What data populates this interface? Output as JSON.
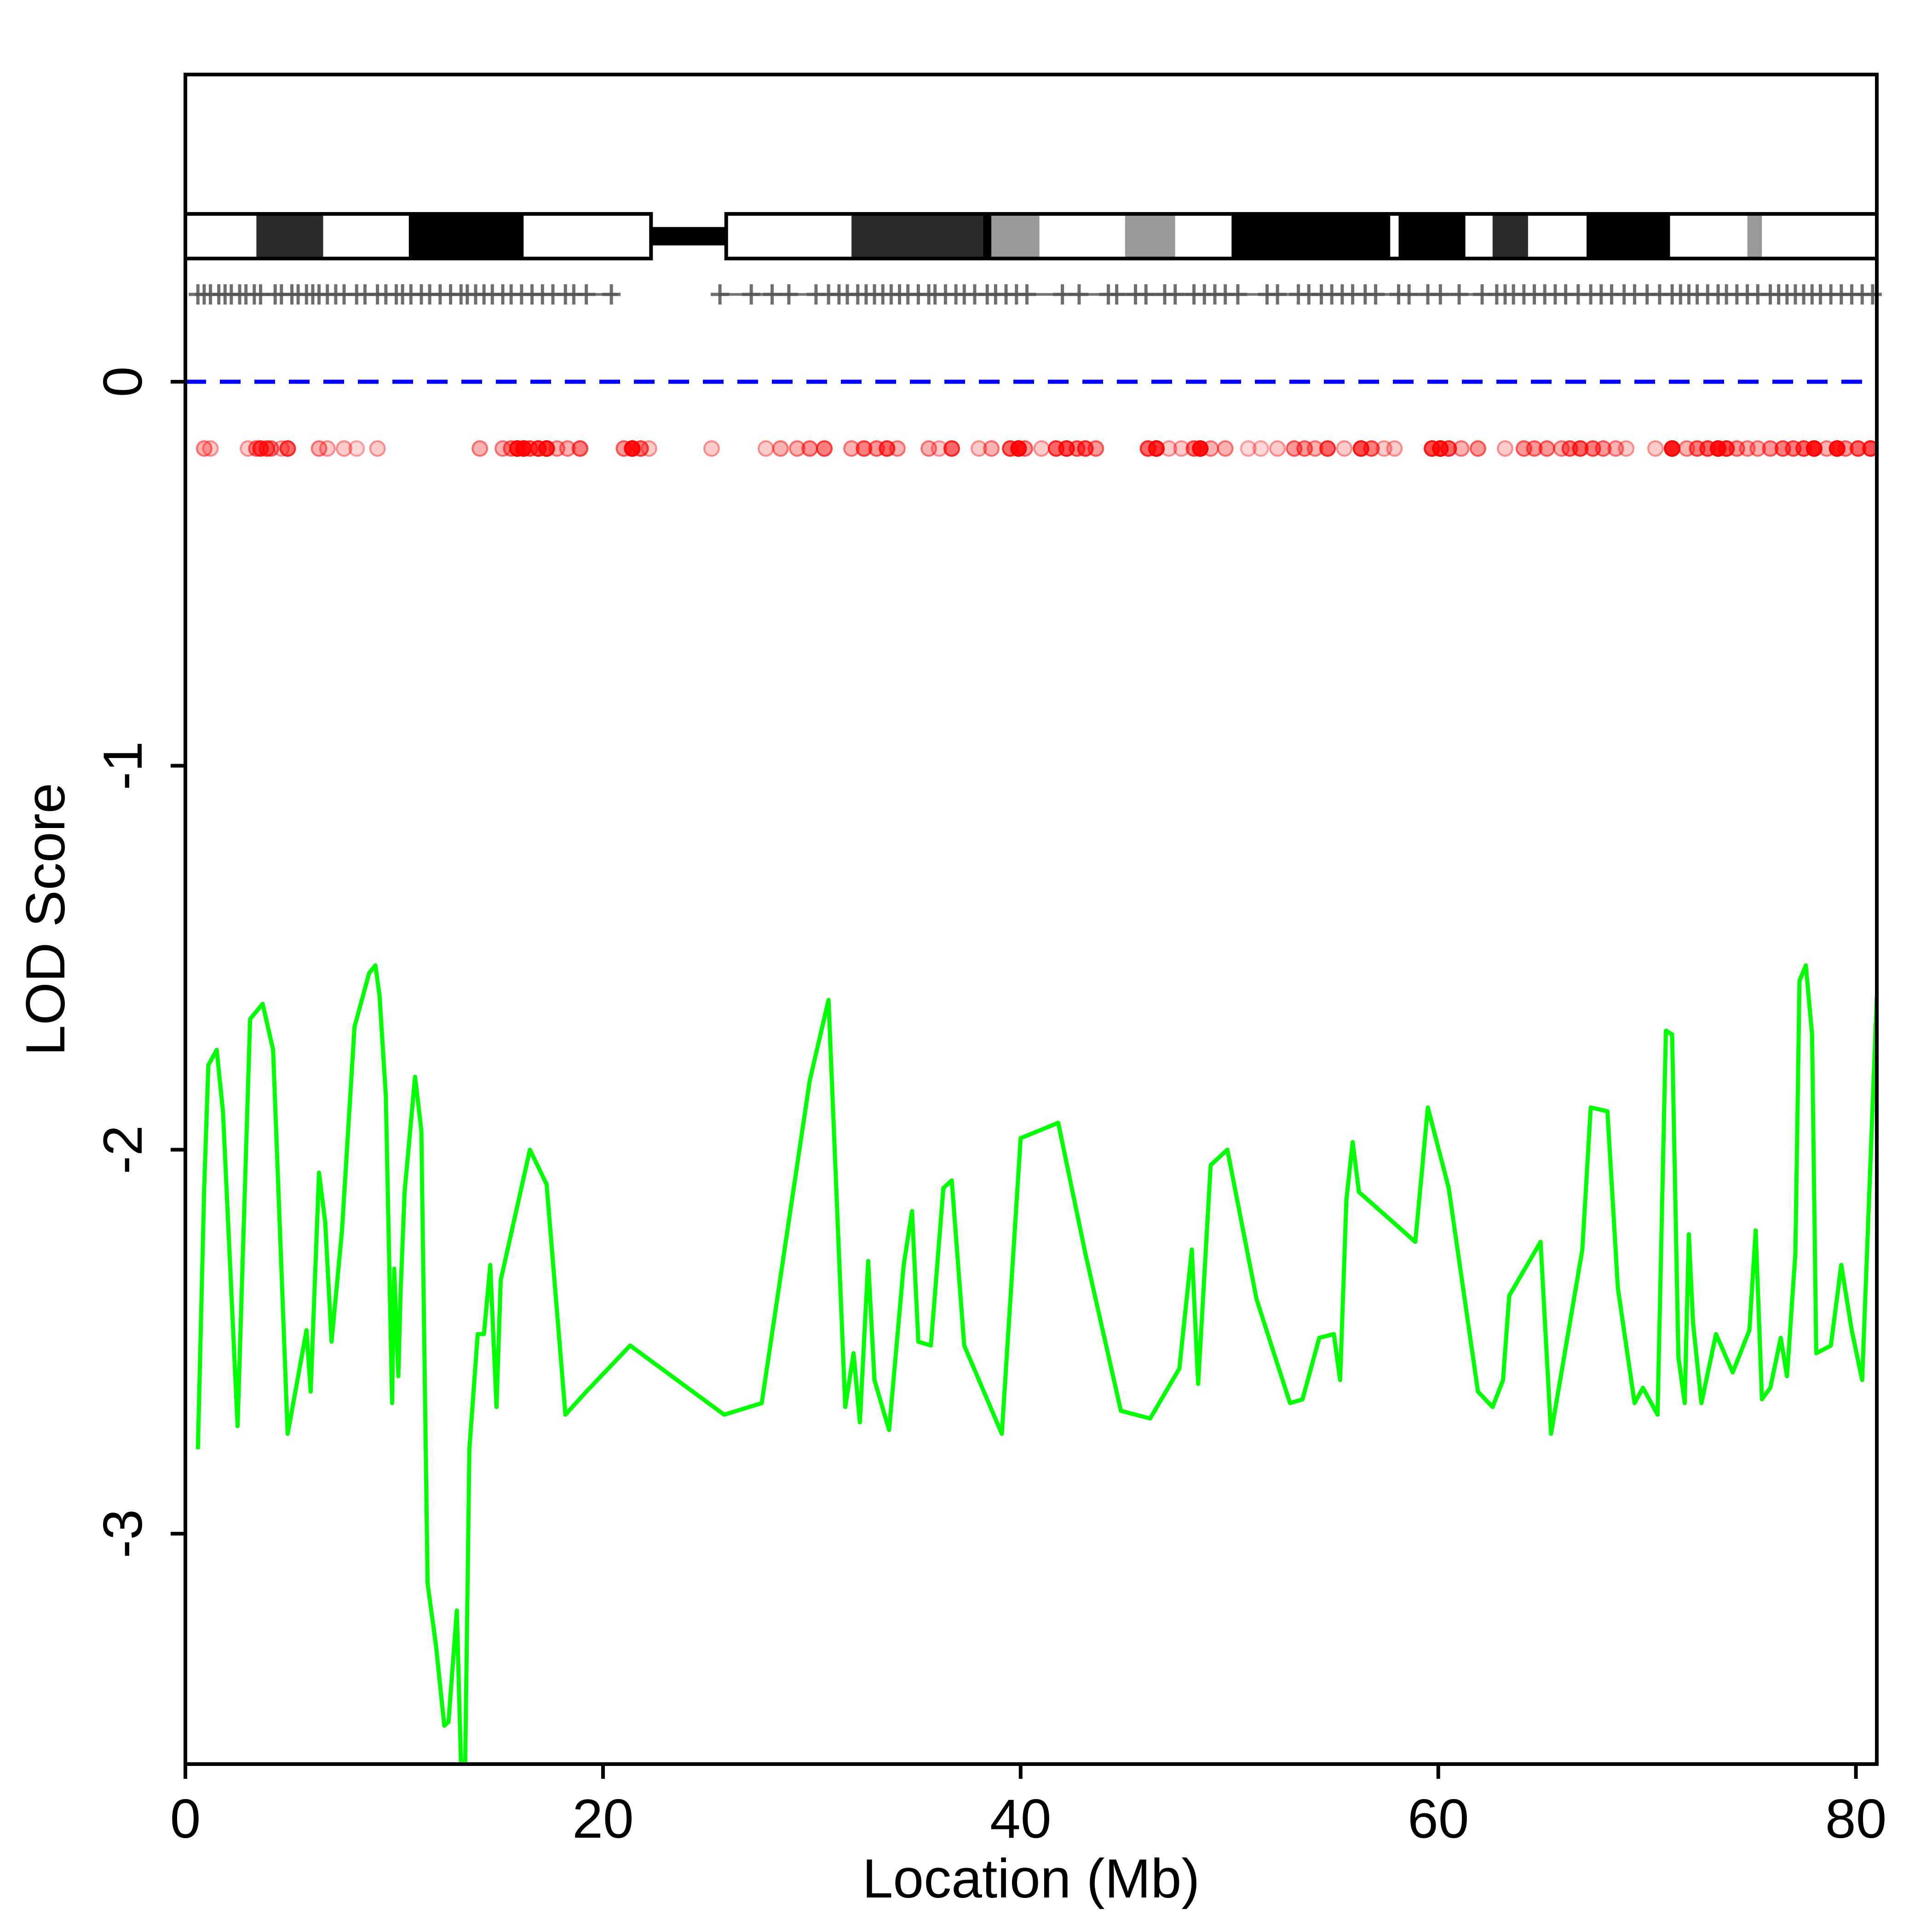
{
  "chart_data": {
    "type": "line",
    "title": "",
    "xlabel": "Location (Mb)",
    "ylabel": "LOD Score",
    "xlim": [
      0,
      81
    ],
    "ylim": [
      -3.6,
      0.8
    ],
    "xticks": [
      0,
      20,
      40,
      60,
      80
    ],
    "yticks": [
      -3,
      -2,
      -1,
      0
    ],
    "xtick_labels": [
      "0",
      "20",
      "40",
      "60",
      "80"
    ],
    "ytick_labels": [
      "-3",
      "-2",
      "-1",
      "0"
    ],
    "grid": false,
    "legend": "none",
    "colors": {
      "lod_line": "#00ff00",
      "threshold": "#0000ff",
      "snp_dots": "#ff0000",
      "markers": "#555555"
    },
    "threshold": {
      "y": 0,
      "style": "dashed"
    },
    "chromosome_ideogram": {
      "centromere": [
        22.3,
        25.9
      ],
      "bands": [
        {
          "start": 0,
          "end": 3.4,
          "stain": "white"
        },
        {
          "start": 3.4,
          "end": 6.6,
          "stain": "darkgray"
        },
        {
          "start": 6.6,
          "end": 10.7,
          "stain": "white"
        },
        {
          "start": 10.7,
          "end": 16.2,
          "stain": "black"
        },
        {
          "start": 16.2,
          "end": 22.3,
          "stain": "white"
        },
        {
          "start": 25.9,
          "end": 31.9,
          "stain": "white"
        },
        {
          "start": 31.9,
          "end": 38.2,
          "stain": "darkgray"
        },
        {
          "start": 38.2,
          "end": 38.6,
          "stain": "black"
        },
        {
          "start": 38.6,
          "end": 40.9,
          "stain": "gray"
        },
        {
          "start": 40.9,
          "end": 45.0,
          "stain": "white"
        },
        {
          "start": 45.0,
          "end": 47.4,
          "stain": "gray"
        },
        {
          "start": 47.4,
          "end": 50.1,
          "stain": "white"
        },
        {
          "start": 50.1,
          "end": 57.7,
          "stain": "black"
        },
        {
          "start": 57.7,
          "end": 58.1,
          "stain": "white"
        },
        {
          "start": 58.1,
          "end": 61.3,
          "stain": "black"
        },
        {
          "start": 61.3,
          "end": 62.6,
          "stain": "white"
        },
        {
          "start": 62.6,
          "end": 64.3,
          "stain": "darkgray"
        },
        {
          "start": 64.3,
          "end": 67.1,
          "stain": "white"
        },
        {
          "start": 67.1,
          "end": 71.1,
          "stain": "black"
        },
        {
          "start": 71.1,
          "end": 74.8,
          "stain": "white"
        },
        {
          "start": 74.8,
          "end": 75.5,
          "stain": "gray"
        },
        {
          "start": 75.5,
          "end": 81,
          "stain": "white"
        }
      ]
    },
    "markers": [
      0.6,
      0.9,
      1.2,
      1.6,
      1.9,
      2.2,
      2.6,
      2.9,
      3.3,
      3.6,
      4.3,
      4.6,
      5.1,
      5.4,
      5.8,
      6.1,
      6.4,
      6.8,
      7.2,
      7.6,
      8.2,
      8.6,
      9.2,
      9.6,
      10.1,
      10.4,
      10.8,
      11.3,
      11.7,
      12.2,
      12.7,
      13.2,
      13.5,
      13.9,
      14.3,
      14.7,
      15.2,
      15.6,
      16.1,
      16.6,
      17.1,
      17.6,
      18.2,
      18.6,
      19.2,
      20.4,
      25.6,
      27.1,
      28.1,
      28.9,
      30.2,
      30.8,
      31.3,
      31.7,
      32.2,
      32.6,
      33.0,
      33.4,
      33.8,
      34.2,
      34.6,
      35.1,
      35.6,
      35.9,
      36.4,
      36.9,
      37.3,
      37.8,
      38.4,
      38.8,
      39.3,
      39.8,
      40.3,
      42.0,
      42.8,
      44.2,
      44.6,
      45.5,
      46.0,
      46.9,
      47.4,
      48.3,
      48.8,
      49.3,
      49.8,
      50.4,
      51.8,
      52.3,
      53.3,
      53.8,
      54.4,
      54.9,
      55.4,
      55.9,
      56.5,
      57.0,
      58.1,
      58.6,
      59.5,
      60.1,
      61.0,
      62.1,
      62.8,
      63.2,
      63.6,
      64.1,
      64.6,
      65.1,
      65.6,
      66.1,
      66.7,
      67.3,
      67.8,
      68.3,
      68.9,
      69.4,
      70.0,
      70.6,
      71.2,
      71.6,
      72.0,
      72.4,
      72.9,
      73.4,
      73.8,
      74.3,
      74.8,
      75.3,
      75.9,
      76.3,
      76.7,
      77.1,
      77.5,
      77.9,
      78.3,
      78.8,
      79.3,
      79.8,
      80.3,
      80.8
    ],
    "snp_dots": [
      {
        "x": 0.9,
        "o": 0.3
      },
      {
        "x": 1.2,
        "o": 0.2
      },
      {
        "x": 3.0,
        "o": 0.2
      },
      {
        "x": 3.4,
        "o": 0.4
      },
      {
        "x": 3.6,
        "o": 0.6
      },
      {
        "x": 3.9,
        "o": 0.5
      },
      {
        "x": 4.1,
        "o": 0.4
      },
      {
        "x": 4.6,
        "o": 0.2
      },
      {
        "x": 4.9,
        "o": 0.6
      },
      {
        "x": 6.4,
        "o": 0.3
      },
      {
        "x": 6.8,
        "o": 0.2
      },
      {
        "x": 7.6,
        "o": 0.2
      },
      {
        "x": 8.2,
        "o": 0.15
      },
      {
        "x": 9.2,
        "o": 0.2
      },
      {
        "x": 14.1,
        "o": 0.3
      },
      {
        "x": 15.2,
        "o": 0.3
      },
      {
        "x": 15.6,
        "o": 0.4
      },
      {
        "x": 15.9,
        "o": 0.8
      },
      {
        "x": 16.2,
        "o": 0.9
      },
      {
        "x": 16.5,
        "o": 0.5
      },
      {
        "x": 16.9,
        "o": 0.7
      },
      {
        "x": 17.3,
        "o": 0.8
      },
      {
        "x": 17.8,
        "o": 0.3
      },
      {
        "x": 18.3,
        "o": 0.3
      },
      {
        "x": 18.9,
        "o": 0.5
      },
      {
        "x": 21.0,
        "o": 0.4
      },
      {
        "x": 21.4,
        "o": 0.9
      },
      {
        "x": 21.8,
        "o": 0.5
      },
      {
        "x": 22.2,
        "o": 0.2
      },
      {
        "x": 25.2,
        "o": 0.2
      },
      {
        "x": 27.8,
        "o": 0.2
      },
      {
        "x": 28.5,
        "o": 0.3
      },
      {
        "x": 29.3,
        "o": 0.3
      },
      {
        "x": 29.9,
        "o": 0.4
      },
      {
        "x": 30.6,
        "o": 0.5
      },
      {
        "x": 31.9,
        "o": 0.3
      },
      {
        "x": 32.5,
        "o": 0.5
      },
      {
        "x": 33.1,
        "o": 0.4
      },
      {
        "x": 33.6,
        "o": 0.6
      },
      {
        "x": 34.1,
        "o": 0.3
      },
      {
        "x": 35.6,
        "o": 0.3
      },
      {
        "x": 36.1,
        "o": 0.2
      },
      {
        "x": 36.7,
        "o": 0.6
      },
      {
        "x": 38.0,
        "o": 0.2
      },
      {
        "x": 38.6,
        "o": 0.3
      },
      {
        "x": 39.5,
        "o": 0.6
      },
      {
        "x": 39.9,
        "o": 0.9
      },
      {
        "x": 40.2,
        "o": 0.4
      },
      {
        "x": 41.0,
        "o": 0.2
      },
      {
        "x": 41.7,
        "o": 0.6
      },
      {
        "x": 42.2,
        "o": 0.7
      },
      {
        "x": 42.7,
        "o": 0.5
      },
      {
        "x": 43.1,
        "o": 0.6
      },
      {
        "x": 43.6,
        "o": 0.4
      },
      {
        "x": 46.1,
        "o": 0.6
      },
      {
        "x": 46.5,
        "o": 0.8
      },
      {
        "x": 47.1,
        "o": 0.2
      },
      {
        "x": 47.7,
        "o": 0.2
      },
      {
        "x": 48.3,
        "o": 0.5
      },
      {
        "x": 48.6,
        "o": 0.9
      },
      {
        "x": 49.1,
        "o": 0.3
      },
      {
        "x": 49.8,
        "o": 0.3
      },
      {
        "x": 50.9,
        "o": 0.15
      },
      {
        "x": 51.5,
        "o": 0.15
      },
      {
        "x": 52.3,
        "o": 0.2
      },
      {
        "x": 53.1,
        "o": 0.4
      },
      {
        "x": 53.6,
        "o": 0.4
      },
      {
        "x": 54.1,
        "o": 0.3
      },
      {
        "x": 54.7,
        "o": 0.6
      },
      {
        "x": 55.5,
        "o": 0.2
      },
      {
        "x": 56.3,
        "o": 0.7
      },
      {
        "x": 56.8,
        "o": 0.5
      },
      {
        "x": 57.4,
        "o": 0.2
      },
      {
        "x": 57.9,
        "o": 0.2
      },
      {
        "x": 59.7,
        "o": 0.7
      },
      {
        "x": 60.1,
        "o": 0.8
      },
      {
        "x": 60.5,
        "o": 0.6
      },
      {
        "x": 61.1,
        "o": 0.3
      },
      {
        "x": 61.9,
        "o": 0.4
      },
      {
        "x": 63.2,
        "o": 0.2
      },
      {
        "x": 64.1,
        "o": 0.4
      },
      {
        "x": 64.6,
        "o": 0.4
      },
      {
        "x": 65.2,
        "o": 0.4
      },
      {
        "x": 65.9,
        "o": 0.3
      },
      {
        "x": 66.3,
        "o": 0.5
      },
      {
        "x": 66.8,
        "o": 0.6
      },
      {
        "x": 67.4,
        "o": 0.5
      },
      {
        "x": 67.9,
        "o": 0.4
      },
      {
        "x": 68.5,
        "o": 0.3
      },
      {
        "x": 69.0,
        "o": 0.2
      },
      {
        "x": 70.4,
        "o": 0.2
      },
      {
        "x": 71.2,
        "o": 0.9
      },
      {
        "x": 71.9,
        "o": 0.3
      },
      {
        "x": 72.4,
        "o": 0.5
      },
      {
        "x": 72.9,
        "o": 0.6
      },
      {
        "x": 73.4,
        "o": 0.9
      },
      {
        "x": 73.8,
        "o": 0.7
      },
      {
        "x": 74.3,
        "o": 0.4
      },
      {
        "x": 74.8,
        "o": 0.3
      },
      {
        "x": 75.3,
        "o": 0.3
      },
      {
        "x": 75.9,
        "o": 0.4
      },
      {
        "x": 76.5,
        "o": 0.5
      },
      {
        "x": 77.0,
        "o": 0.5
      },
      {
        "x": 77.5,
        "o": 0.6
      },
      {
        "x": 78.0,
        "o": 0.9
      },
      {
        "x": 78.6,
        "o": 0.3
      },
      {
        "x": 79.1,
        "o": 0.9
      },
      {
        "x": 79.5,
        "o": 0.4
      },
      {
        "x": 80.1,
        "o": 0.6
      },
      {
        "x": 80.7,
        "o": 0.7
      }
    ],
    "series": [
      {
        "x": [
          0.6,
          0.9,
          1.1,
          1.5,
          1.8,
          2.5,
          3.1,
          3.7,
          4.2,
          4.9,
          5.8,
          6.0,
          6.4,
          6.7,
          7.0,
          7.5,
          8.1,
          8.8,
          9.1,
          9.3,
          9.6,
          9.9,
          10.0,
          10.2,
          10.3,
          10.5,
          11.0,
          11.3,
          11.6,
          12.0,
          12.4,
          12.6,
          13.0,
          13.2,
          13.4,
          13.6,
          14.0,
          14.3,
          14.6,
          14.9,
          15.1,
          16.5,
          17.3,
          18.2,
          19.2,
          21.3,
          25.8,
          27.6,
          29.9,
          30.8,
          31.6,
          32.0,
          32.3,
          32.7,
          33.0,
          33.7,
          34.4,
          34.8,
          35.1,
          35.7,
          36.3,
          36.7,
          37.3,
          39.1,
          40.0,
          41.8,
          43.1,
          44.8,
          46.2,
          47.6,
          48.2,
          48.5,
          49.1,
          49.9,
          51.3,
          52.9,
          53.5,
          54.3,
          55.0,
          55.3,
          55.6,
          55.9,
          56.2,
          58.9,
          59.5,
          60.5,
          61.9,
          62.6,
          63.1,
          63.4,
          64.9,
          65.4,
          66.9,
          67.3,
          68.1,
          68.6,
          69.4,
          69.8,
          70.5,
          70.9,
          71.2,
          71.5,
          71.8,
          72.0,
          72.2,
          72.6,
          73.3,
          74.1,
          74.9,
          75.2,
          75.5,
          75.9,
          76.4,
          76.7,
          77.1,
          77.3,
          77.6,
          77.9,
          78.1,
          78.8,
          79.3,
          79.8,
          80.3,
          81.0
        ],
        "y": [
          -2.78,
          -2.1,
          -1.78,
          -1.74,
          -1.9,
          -2.72,
          -1.66,
          -1.62,
          -1.74,
          -2.74,
          -2.47,
          -2.63,
          -2.06,
          -2.19,
          -2.5,
          -2.21,
          -1.68,
          -1.54,
          -1.52,
          -1.6,
          -1.86,
          -2.66,
          -2.31,
          -2.59,
          -2.38,
          -2.11,
          -1.81,
          -1.95,
          -3.13,
          -3.29,
          -3.5,
          -3.49,
          -3.2,
          -3.6,
          -3.6,
          -2.78,
          -2.48,
          -2.48,
          -2.3,
          -2.67,
          -2.34,
          -2.0,
          -2.09,
          -2.69,
          -2.63,
          -2.51,
          -2.69,
          -2.66,
          -1.82,
          -1.61,
          -2.67,
          -2.53,
          -2.71,
          -2.29,
          -2.6,
          -2.73,
          -2.3,
          -2.16,
          -2.5,
          -2.51,
          -2.1,
          -2.08,
          -2.51,
          -2.74,
          -1.97,
          -1.93,
          -2.27,
          -2.68,
          -2.7,
          -2.57,
          -2.26,
          -2.61,
          -2.04,
          -2.0,
          -2.39,
          -2.66,
          -2.65,
          -2.49,
          -2.48,
          -2.6,
          -2.13,
          -1.98,
          -2.11,
          -2.24,
          -1.89,
          -2.1,
          -2.63,
          -2.67,
          -2.6,
          -2.38,
          -2.24,
          -2.74,
          -2.26,
          -1.89,
          -1.9,
          -2.36,
          -2.66,
          -2.62,
          -2.69,
          -1.69,
          -1.7,
          -2.54,
          -2.66,
          -2.22,
          -2.45,
          -2.66,
          -2.48,
          -2.58,
          -2.47,
          -2.21,
          -2.65,
          -2.62,
          -2.49,
          -2.59,
          -2.27,
          -1.56,
          -1.52,
          -1.7,
          -2.53,
          -2.51,
          -2.3,
          -2.47,
          -2.6,
          -1.6
        ]
      }
    ]
  }
}
